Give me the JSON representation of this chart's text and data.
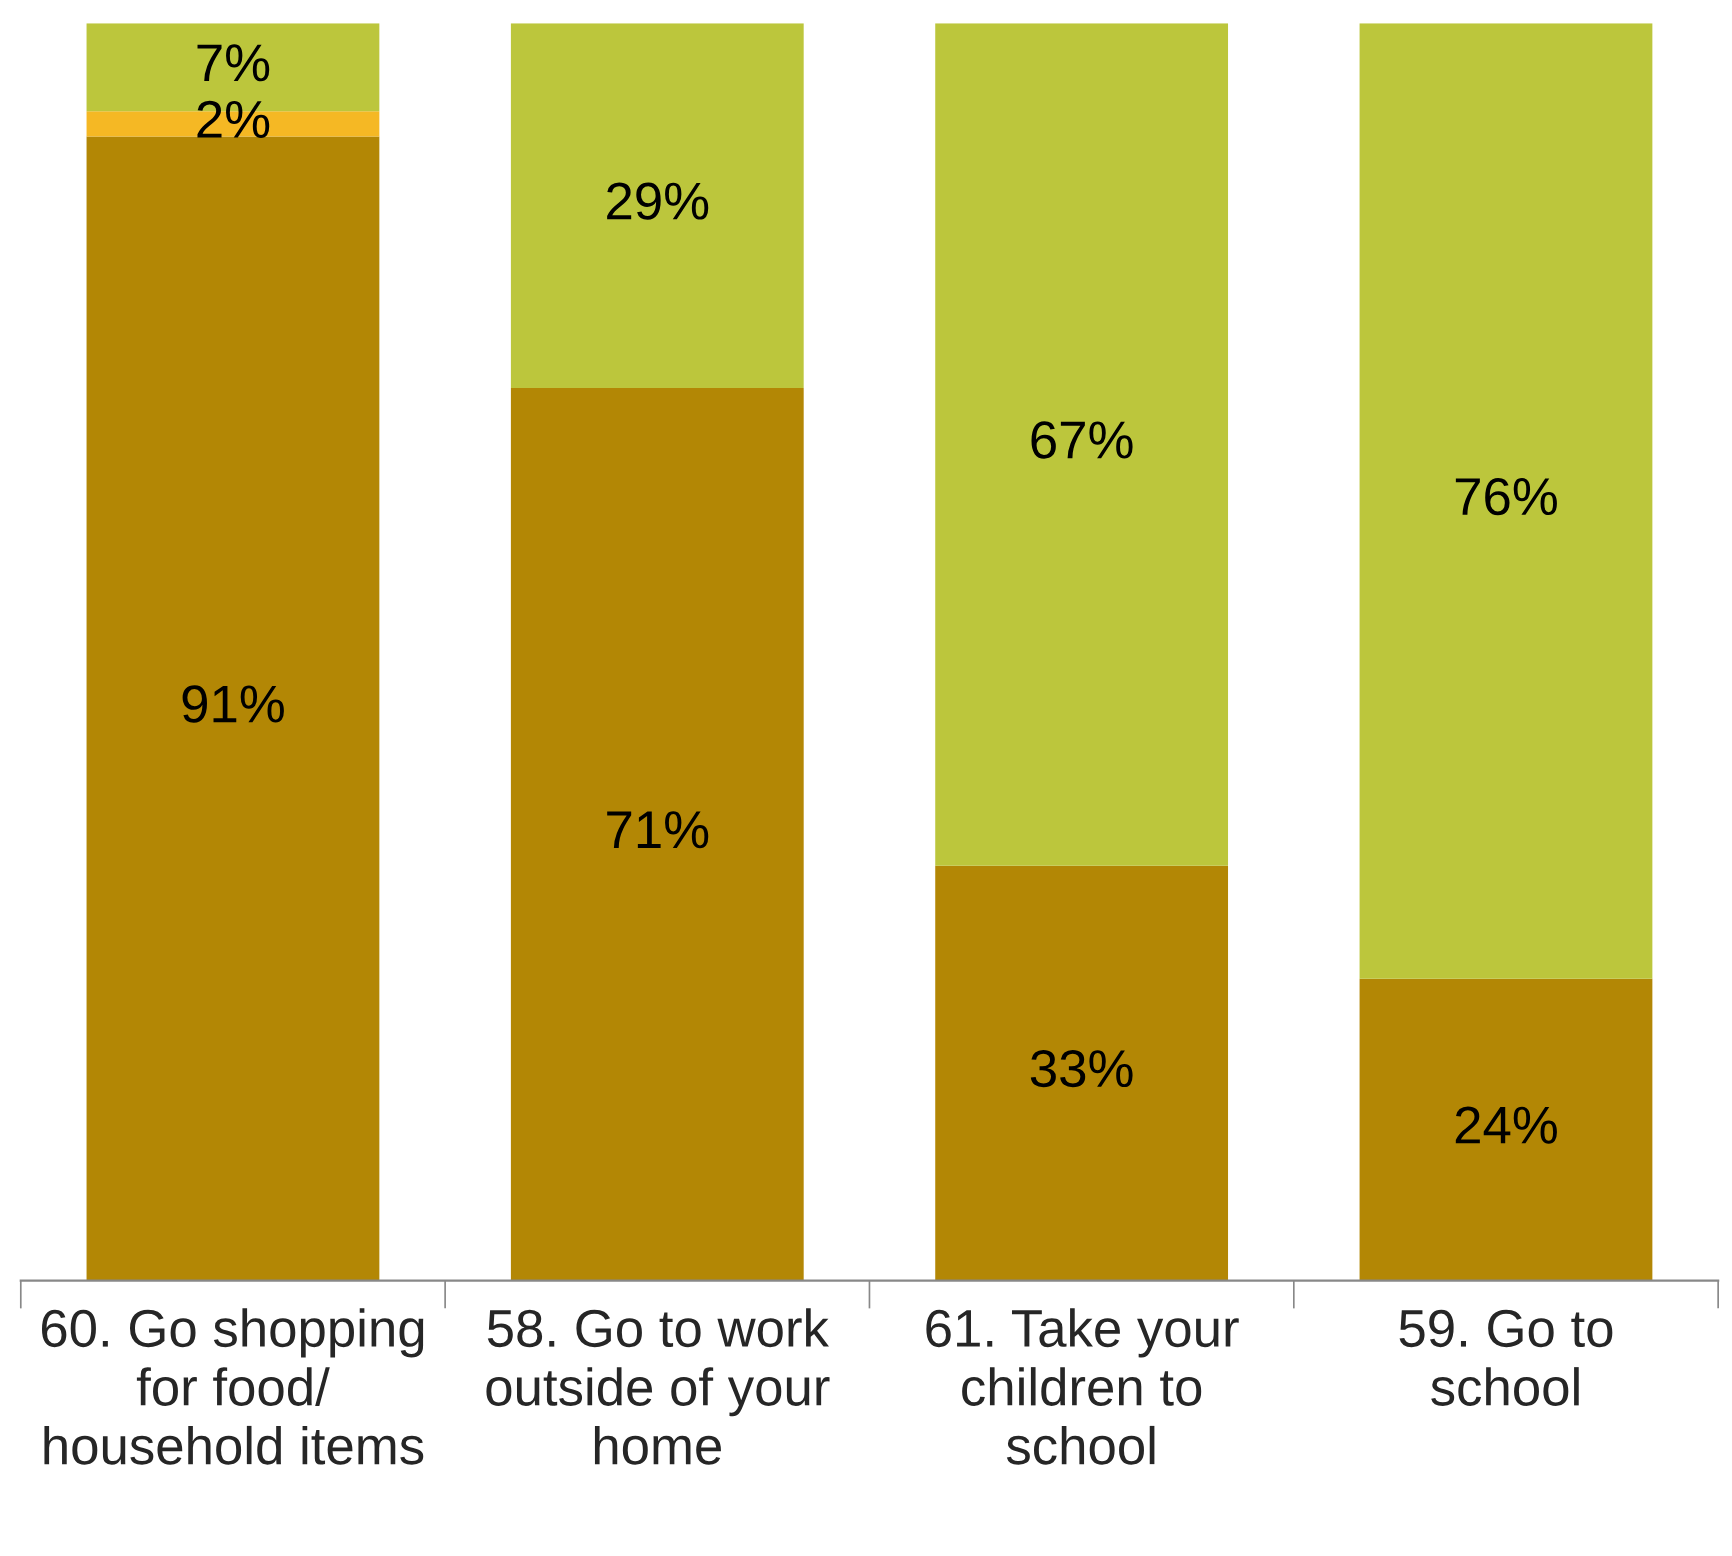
{
  "chart_data": {
    "type": "bar",
    "stacked": true,
    "legend": false,
    "categories": [
      "60. Go shopping\nfor food/\nhousehold items",
      "58. Go to work\noutside of your\nhome",
      "61. Take your\nchildren to\nschool",
      "59. Go to\nschool"
    ],
    "series": [
      {
        "color": "#b38705",
        "values": [
          91,
          71,
          33,
          24
        ],
        "value_labels": [
          "91%",
          "71%",
          "33%",
          "24%"
        ]
      },
      {
        "color": "#f5b824",
        "values": [
          2,
          0,
          0,
          0
        ],
        "value_labels": [
          "2%",
          null,
          null,
          null
        ]
      },
      {
        "color": "#bcc63c",
        "values": [
          7,
          29,
          67,
          76
        ],
        "value_labels": [
          "7%",
          "29%",
          "67%",
          "76%"
        ]
      }
    ]
  }
}
